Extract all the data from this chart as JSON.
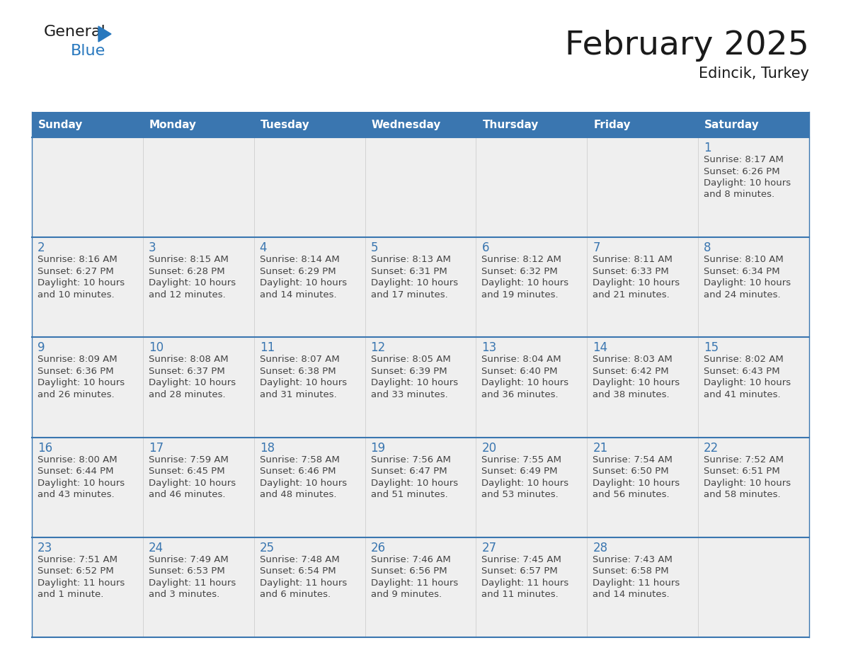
{
  "title": "February 2025",
  "subtitle": "Edincik, Turkey",
  "days_of_week": [
    "Sunday",
    "Monday",
    "Tuesday",
    "Wednesday",
    "Thursday",
    "Friday",
    "Saturday"
  ],
  "header_bg": "#3a76b0",
  "header_text": "#ffffff",
  "cell_bg": "#efefef",
  "separator_color": "#3a76b0",
  "day_num_color": "#3a76b0",
  "text_color": "#444444",
  "logo_general_color": "#1a1a1a",
  "logo_blue_color": "#2878be",
  "calendar_data": [
    {
      "week": 0,
      "col": 6,
      "day": 1,
      "sunrise": "8:17 AM",
      "sunset": "6:26 PM",
      "daylight_hours": 10,
      "daylight_minutes": 8
    },
    {
      "week": 1,
      "col": 0,
      "day": 2,
      "sunrise": "8:16 AM",
      "sunset": "6:27 PM",
      "daylight_hours": 10,
      "daylight_minutes": 10
    },
    {
      "week": 1,
      "col": 1,
      "day": 3,
      "sunrise": "8:15 AM",
      "sunset": "6:28 PM",
      "daylight_hours": 10,
      "daylight_minutes": 12
    },
    {
      "week": 1,
      "col": 2,
      "day": 4,
      "sunrise": "8:14 AM",
      "sunset": "6:29 PM",
      "daylight_hours": 10,
      "daylight_minutes": 14
    },
    {
      "week": 1,
      "col": 3,
      "day": 5,
      "sunrise": "8:13 AM",
      "sunset": "6:31 PM",
      "daylight_hours": 10,
      "daylight_minutes": 17
    },
    {
      "week": 1,
      "col": 4,
      "day": 6,
      "sunrise": "8:12 AM",
      "sunset": "6:32 PM",
      "daylight_hours": 10,
      "daylight_minutes": 19
    },
    {
      "week": 1,
      "col": 5,
      "day": 7,
      "sunrise": "8:11 AM",
      "sunset": "6:33 PM",
      "daylight_hours": 10,
      "daylight_minutes": 21
    },
    {
      "week": 1,
      "col": 6,
      "day": 8,
      "sunrise": "8:10 AM",
      "sunset": "6:34 PM",
      "daylight_hours": 10,
      "daylight_minutes": 24
    },
    {
      "week": 2,
      "col": 0,
      "day": 9,
      "sunrise": "8:09 AM",
      "sunset": "6:36 PM",
      "daylight_hours": 10,
      "daylight_minutes": 26
    },
    {
      "week": 2,
      "col": 1,
      "day": 10,
      "sunrise": "8:08 AM",
      "sunset": "6:37 PM",
      "daylight_hours": 10,
      "daylight_minutes": 28
    },
    {
      "week": 2,
      "col": 2,
      "day": 11,
      "sunrise": "8:07 AM",
      "sunset": "6:38 PM",
      "daylight_hours": 10,
      "daylight_minutes": 31
    },
    {
      "week": 2,
      "col": 3,
      "day": 12,
      "sunrise": "8:05 AM",
      "sunset": "6:39 PM",
      "daylight_hours": 10,
      "daylight_minutes": 33
    },
    {
      "week": 2,
      "col": 4,
      "day": 13,
      "sunrise": "8:04 AM",
      "sunset": "6:40 PM",
      "daylight_hours": 10,
      "daylight_minutes": 36
    },
    {
      "week": 2,
      "col": 5,
      "day": 14,
      "sunrise": "8:03 AM",
      "sunset": "6:42 PM",
      "daylight_hours": 10,
      "daylight_minutes": 38
    },
    {
      "week": 2,
      "col": 6,
      "day": 15,
      "sunrise": "8:02 AM",
      "sunset": "6:43 PM",
      "daylight_hours": 10,
      "daylight_minutes": 41
    },
    {
      "week": 3,
      "col": 0,
      "day": 16,
      "sunrise": "8:00 AM",
      "sunset": "6:44 PM",
      "daylight_hours": 10,
      "daylight_minutes": 43
    },
    {
      "week": 3,
      "col": 1,
      "day": 17,
      "sunrise": "7:59 AM",
      "sunset": "6:45 PM",
      "daylight_hours": 10,
      "daylight_minutes": 46
    },
    {
      "week": 3,
      "col": 2,
      "day": 18,
      "sunrise": "7:58 AM",
      "sunset": "6:46 PM",
      "daylight_hours": 10,
      "daylight_minutes": 48
    },
    {
      "week": 3,
      "col": 3,
      "day": 19,
      "sunrise": "7:56 AM",
      "sunset": "6:47 PM",
      "daylight_hours": 10,
      "daylight_minutes": 51
    },
    {
      "week": 3,
      "col": 4,
      "day": 20,
      "sunrise": "7:55 AM",
      "sunset": "6:49 PM",
      "daylight_hours": 10,
      "daylight_minutes": 53
    },
    {
      "week": 3,
      "col": 5,
      "day": 21,
      "sunrise": "7:54 AM",
      "sunset": "6:50 PM",
      "daylight_hours": 10,
      "daylight_minutes": 56
    },
    {
      "week": 3,
      "col": 6,
      "day": 22,
      "sunrise": "7:52 AM",
      "sunset": "6:51 PM",
      "daylight_hours": 10,
      "daylight_minutes": 58
    },
    {
      "week": 4,
      "col": 0,
      "day": 23,
      "sunrise": "7:51 AM",
      "sunset": "6:52 PM",
      "daylight_hours": 11,
      "daylight_minutes": 1
    },
    {
      "week": 4,
      "col": 1,
      "day": 24,
      "sunrise": "7:49 AM",
      "sunset": "6:53 PM",
      "daylight_hours": 11,
      "daylight_minutes": 3
    },
    {
      "week": 4,
      "col": 2,
      "day": 25,
      "sunrise": "7:48 AM",
      "sunset": "6:54 PM",
      "daylight_hours": 11,
      "daylight_minutes": 6
    },
    {
      "week": 4,
      "col": 3,
      "day": 26,
      "sunrise": "7:46 AM",
      "sunset": "6:56 PM",
      "daylight_hours": 11,
      "daylight_minutes": 9
    },
    {
      "week": 4,
      "col": 4,
      "day": 27,
      "sunrise": "7:45 AM",
      "sunset": "6:57 PM",
      "daylight_hours": 11,
      "daylight_minutes": 11
    },
    {
      "week": 4,
      "col": 5,
      "day": 28,
      "sunrise": "7:43 AM",
      "sunset": "6:58 PM",
      "daylight_hours": 11,
      "daylight_minutes": 14
    }
  ],
  "num_weeks": 5
}
